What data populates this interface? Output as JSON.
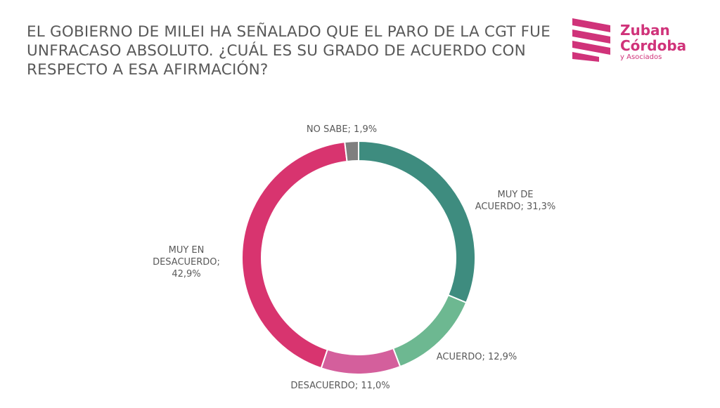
{
  "title": "EL GOBIERNO DE MILEI HA SEÑALADO QUE EL PARO DE LA CGT FUE UNFRACASO ABSOLUTO. ¿CUÁL ES SU GRADO DE ACUERDO CON RESPECTO A ESA AFIRMACIÓN?",
  "logo": {
    "line1": "Zuban",
    "line2": "Córdoba",
    "line3": "y Asociados"
  },
  "colors": {
    "brand": "#d0337a",
    "muy_de_acuerdo": "#3e8c7f",
    "acuerdo": "#6db891",
    "desacuerdo": "#d45f9c",
    "muy_en_desacuerdo": "#d8346f",
    "no_sabe": "#7f7f7f"
  },
  "chart_data": {
    "type": "pie",
    "style": "donut",
    "title": "EL GOBIERNO DE MILEI HA SEÑALADO QUE EL PARO DE LA CGT FUE UNFRACASO ABSOLUTO. ¿CUÁL ES SU GRADO DE ACUERDO CON RESPECTO A ESA AFIRMACIÓN?",
    "unit": "%",
    "slices": [
      {
        "category": "MUY DE ACUERDO",
        "value": 31.3,
        "label_lines": [
          "MUY DE",
          "ACUERDO; 31,3%"
        ],
        "color": "#3e8c7f"
      },
      {
        "category": "ACUERDO",
        "value": 12.9,
        "label_lines": [
          "ACUERDO; 12,9%"
        ],
        "color": "#6db891"
      },
      {
        "category": "DESACUERDO",
        "value": 11.0,
        "label_lines": [
          "DESACUERDO; 11,0%"
        ],
        "color": "#d45f9c"
      },
      {
        "category": "MUY EN DESACUERDO",
        "value": 42.9,
        "label_lines": [
          "MUY EN",
          "DESACUERDO;",
          "42,9%"
        ],
        "color": "#d8346f"
      },
      {
        "category": "NO SABE",
        "value": 1.9,
        "label_lines": [
          "NO SABE; 1,9%"
        ],
        "color": "#7f7f7f"
      }
    ],
    "legend": "none"
  }
}
